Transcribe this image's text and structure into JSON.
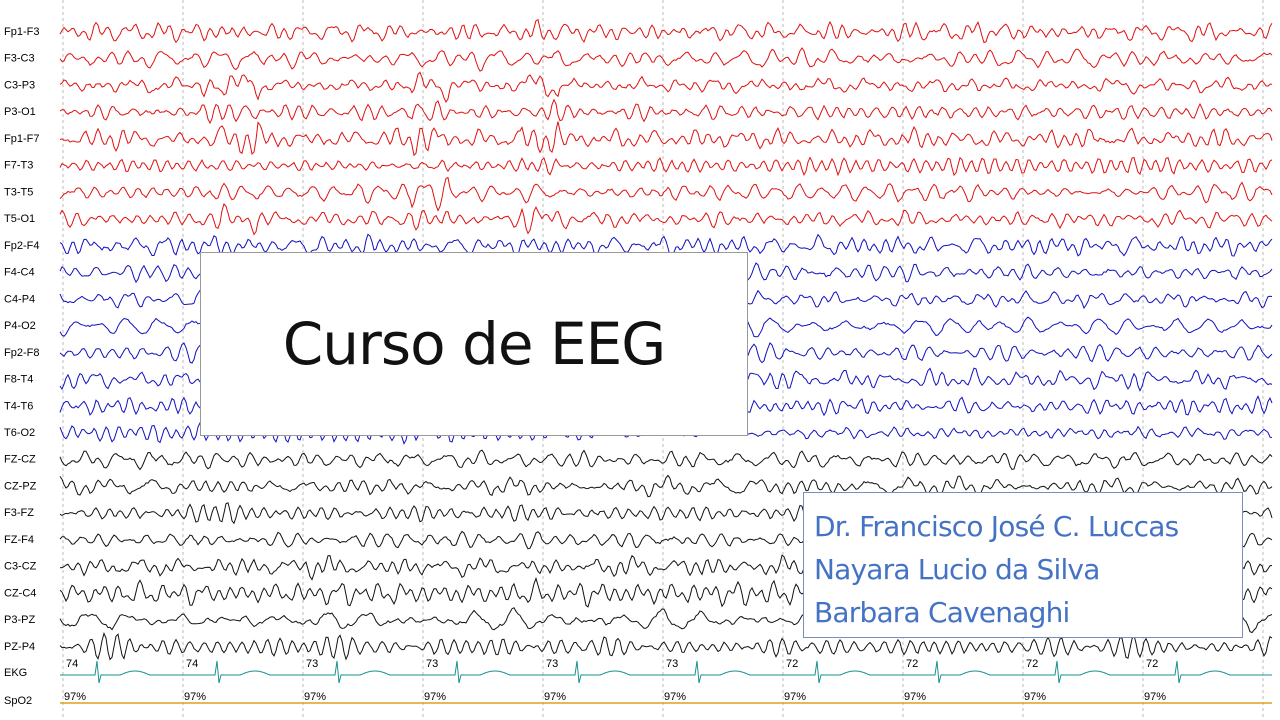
{
  "channels": [
    "Fp1-F3",
    "F3-C3",
    "C3-P3",
    "P3-O1",
    "Fp1-F7",
    "F7-T3",
    "T3-T5",
    "T5-O1",
    "Fp2-F4",
    "F4-C4",
    "C4-P4",
    "P4-O2",
    "Fp2-F8",
    "F8-T4",
    "T4-T6",
    "T6-O2",
    "FZ-CZ",
    "CZ-PZ",
    "F3-FZ",
    "FZ-F4",
    "C3-CZ",
    "CZ-C4",
    "P3-PZ",
    "PZ-P4"
  ],
  "ekg_label": "EKG",
  "spo2_label": "SpO2",
  "heart_rate": [
    "74",
    "74",
    "73",
    "73",
    "73",
    "73",
    "72",
    "72",
    "72",
    "72"
  ],
  "spo2": [
    "97%",
    "97%",
    "97%",
    "97%",
    "97%",
    "97%",
    "97%",
    "97%",
    "97%",
    "97%"
  ],
  "title": "Curso de EEG",
  "authors": [
    "Dr. Francisco José C. Luccas",
    "Nayara Lucio da Silva",
    "Barbara Cavenaghi"
  ]
}
